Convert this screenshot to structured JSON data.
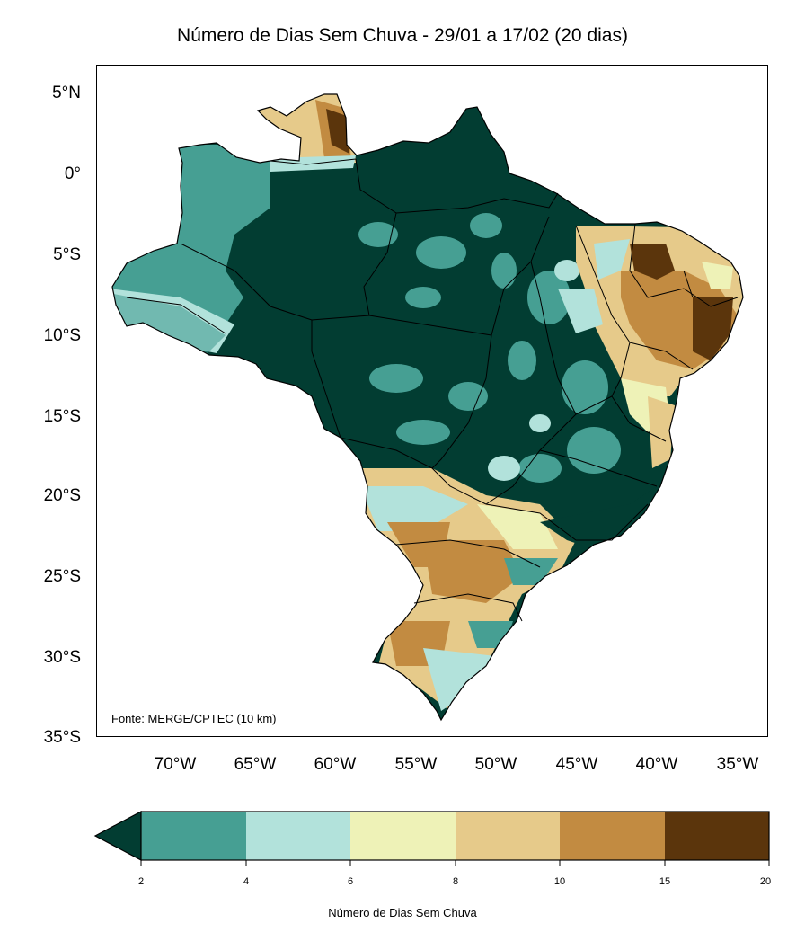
{
  "title": "Número de Dias Sem Chuva - 29/01 a 17/02 (20 dias)",
  "source": "Fonte: MERGE/CPTEC (10 km)",
  "lat_labels": [
    "5°N",
    "0°",
    "5°S",
    "10°S",
    "15°S",
    "20°S",
    "25°S",
    "30°S",
    "35°S"
  ],
  "lat_values": [
    5,
    0,
    -5,
    -10,
    -15,
    -20,
    -25,
    -30,
    -35
  ],
  "lon_labels": [
    "70°W",
    "65°W",
    "60°W",
    "55°W",
    "50°W",
    "45°W",
    "40°W",
    "35°W"
  ],
  "lon_values": [
    -70,
    -65,
    -60,
    -55,
    -50,
    -45,
    -40,
    -35
  ],
  "colorbar": {
    "label": "Número de Dias Sem Chuva",
    "ticks": [
      "2",
      "4",
      "6",
      "8",
      "10",
      "15",
      "20"
    ],
    "under_color": "#023d32",
    "colors": [
      "#469f93",
      "#b2e2db",
      "#eef2b7",
      "#e6ca8a",
      "#c28b41",
      "#5b350c"
    ]
  }
}
